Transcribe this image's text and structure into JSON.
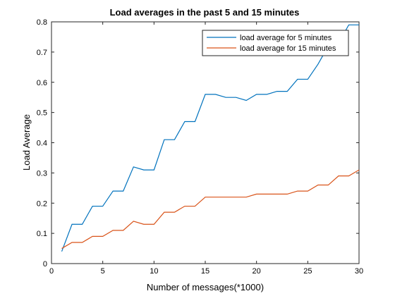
{
  "chart_data": {
    "type": "line",
    "title": "Load averages in the past 5 and 15 minutes",
    "xlabel": "Number of messages(*1000)",
    "ylabel": "Load Average",
    "xlim": [
      0,
      30
    ],
    "ylim": [
      0,
      0.8
    ],
    "xticks": [
      "0",
      "5",
      "10",
      "15",
      "20",
      "25",
      "30"
    ],
    "yticks": [
      "0",
      "0.1",
      "0.2",
      "0.3",
      "0.4",
      "0.5",
      "0.6",
      "0.7",
      "0.8"
    ],
    "grid": false,
    "legend_position": "top-right",
    "x": [
      1,
      2,
      3,
      4,
      5,
      6,
      7,
      8,
      9,
      10,
      11,
      12,
      13,
      14,
      15,
      16,
      17,
      18,
      19,
      20,
      21,
      22,
      23,
      24,
      25,
      26,
      27,
      28,
      29,
      30
    ],
    "series": [
      {
        "name": "load average for 5 minutes",
        "color": "#0072BD",
        "values": [
          0.04,
          0.13,
          0.13,
          0.19,
          0.19,
          0.24,
          0.24,
          0.32,
          0.31,
          0.31,
          0.41,
          0.41,
          0.47,
          0.47,
          0.56,
          0.56,
          0.55,
          0.55,
          0.54,
          0.56,
          0.56,
          0.57,
          0.57,
          0.61,
          0.61,
          0.66,
          0.72,
          0.73,
          0.79,
          0.79
        ]
      },
      {
        "name": "load average for 15 minutes",
        "color": "#D95319",
        "values": [
          0.05,
          0.07,
          0.07,
          0.09,
          0.09,
          0.11,
          0.11,
          0.14,
          0.13,
          0.13,
          0.17,
          0.17,
          0.19,
          0.19,
          0.22,
          0.22,
          0.22,
          0.22,
          0.22,
          0.23,
          0.23,
          0.23,
          0.23,
          0.24,
          0.24,
          0.26,
          0.26,
          0.29,
          0.29,
          0.31
        ]
      }
    ]
  }
}
